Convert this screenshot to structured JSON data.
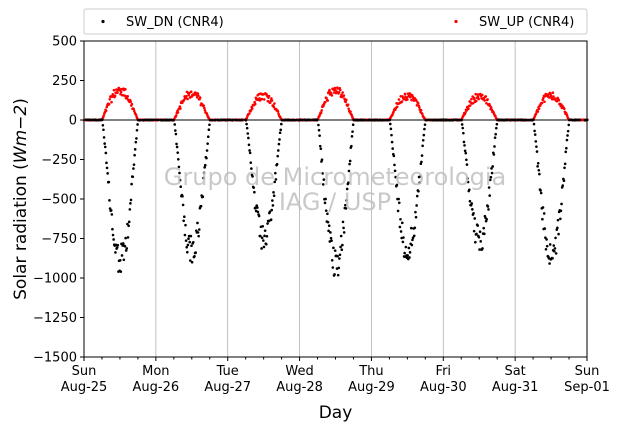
{
  "chart_data": {
    "type": "scatter",
    "title": "",
    "ylabel": "Solar radiation (W m−2)",
    "ylabel_parts": {
      "main": "Solar radiation (",
      "italic": "Wm",
      "sup": "−2",
      "close": ")"
    },
    "xlabel": "Day",
    "watermark": [
      "Grupo de Micrometeorologia",
      "IAG / USP"
    ],
    "ylim": [
      -1500,
      500
    ],
    "xlim": [
      0,
      7
    ],
    "y_ticks": [
      500,
      250,
      0,
      -250,
      -500,
      -750,
      -1000,
      -1250,
      -1500
    ],
    "y_tick_labels": [
      "500",
      "250",
      "0",
      "−250",
      "−500",
      "−750",
      "−1000",
      "−1250",
      "−1500"
    ],
    "x_ticks": [
      {
        "x": 0,
        "day": "Sun",
        "date": "Aug-25"
      },
      {
        "x": 1,
        "day": "Mon",
        "date": "Aug-26"
      },
      {
        "x": 2,
        "day": "Tue",
        "date": "Aug-27"
      },
      {
        "x": 3,
        "day": "Wed",
        "date": "Aug-28"
      },
      {
        "x": 4,
        "day": "Thu",
        "date": "Aug-29"
      },
      {
        "x": 5,
        "day": "Fri",
        "date": "Aug-30"
      },
      {
        "x": 6,
        "day": "Sat",
        "date": "Aug-31"
      },
      {
        "x": 7,
        "day": "Sun",
        "date": "Sep-01"
      }
    ],
    "grid": "vertical",
    "legend_position": "top",
    "series": [
      {
        "name": "SW_DN (CNR4)",
        "color": "#000000",
        "daily_peak": [
          -960,
          -900,
          -820,
          -990,
          -880,
          -820,
          -920
        ]
      },
      {
        "name": "SW_UP (CNR4)",
        "color": "#ff0000",
        "daily_peak": [
          205,
          180,
          170,
          205,
          170,
          165,
          175
        ]
      }
    ],
    "daylight_hours": [
      6,
      18
    ]
  }
}
